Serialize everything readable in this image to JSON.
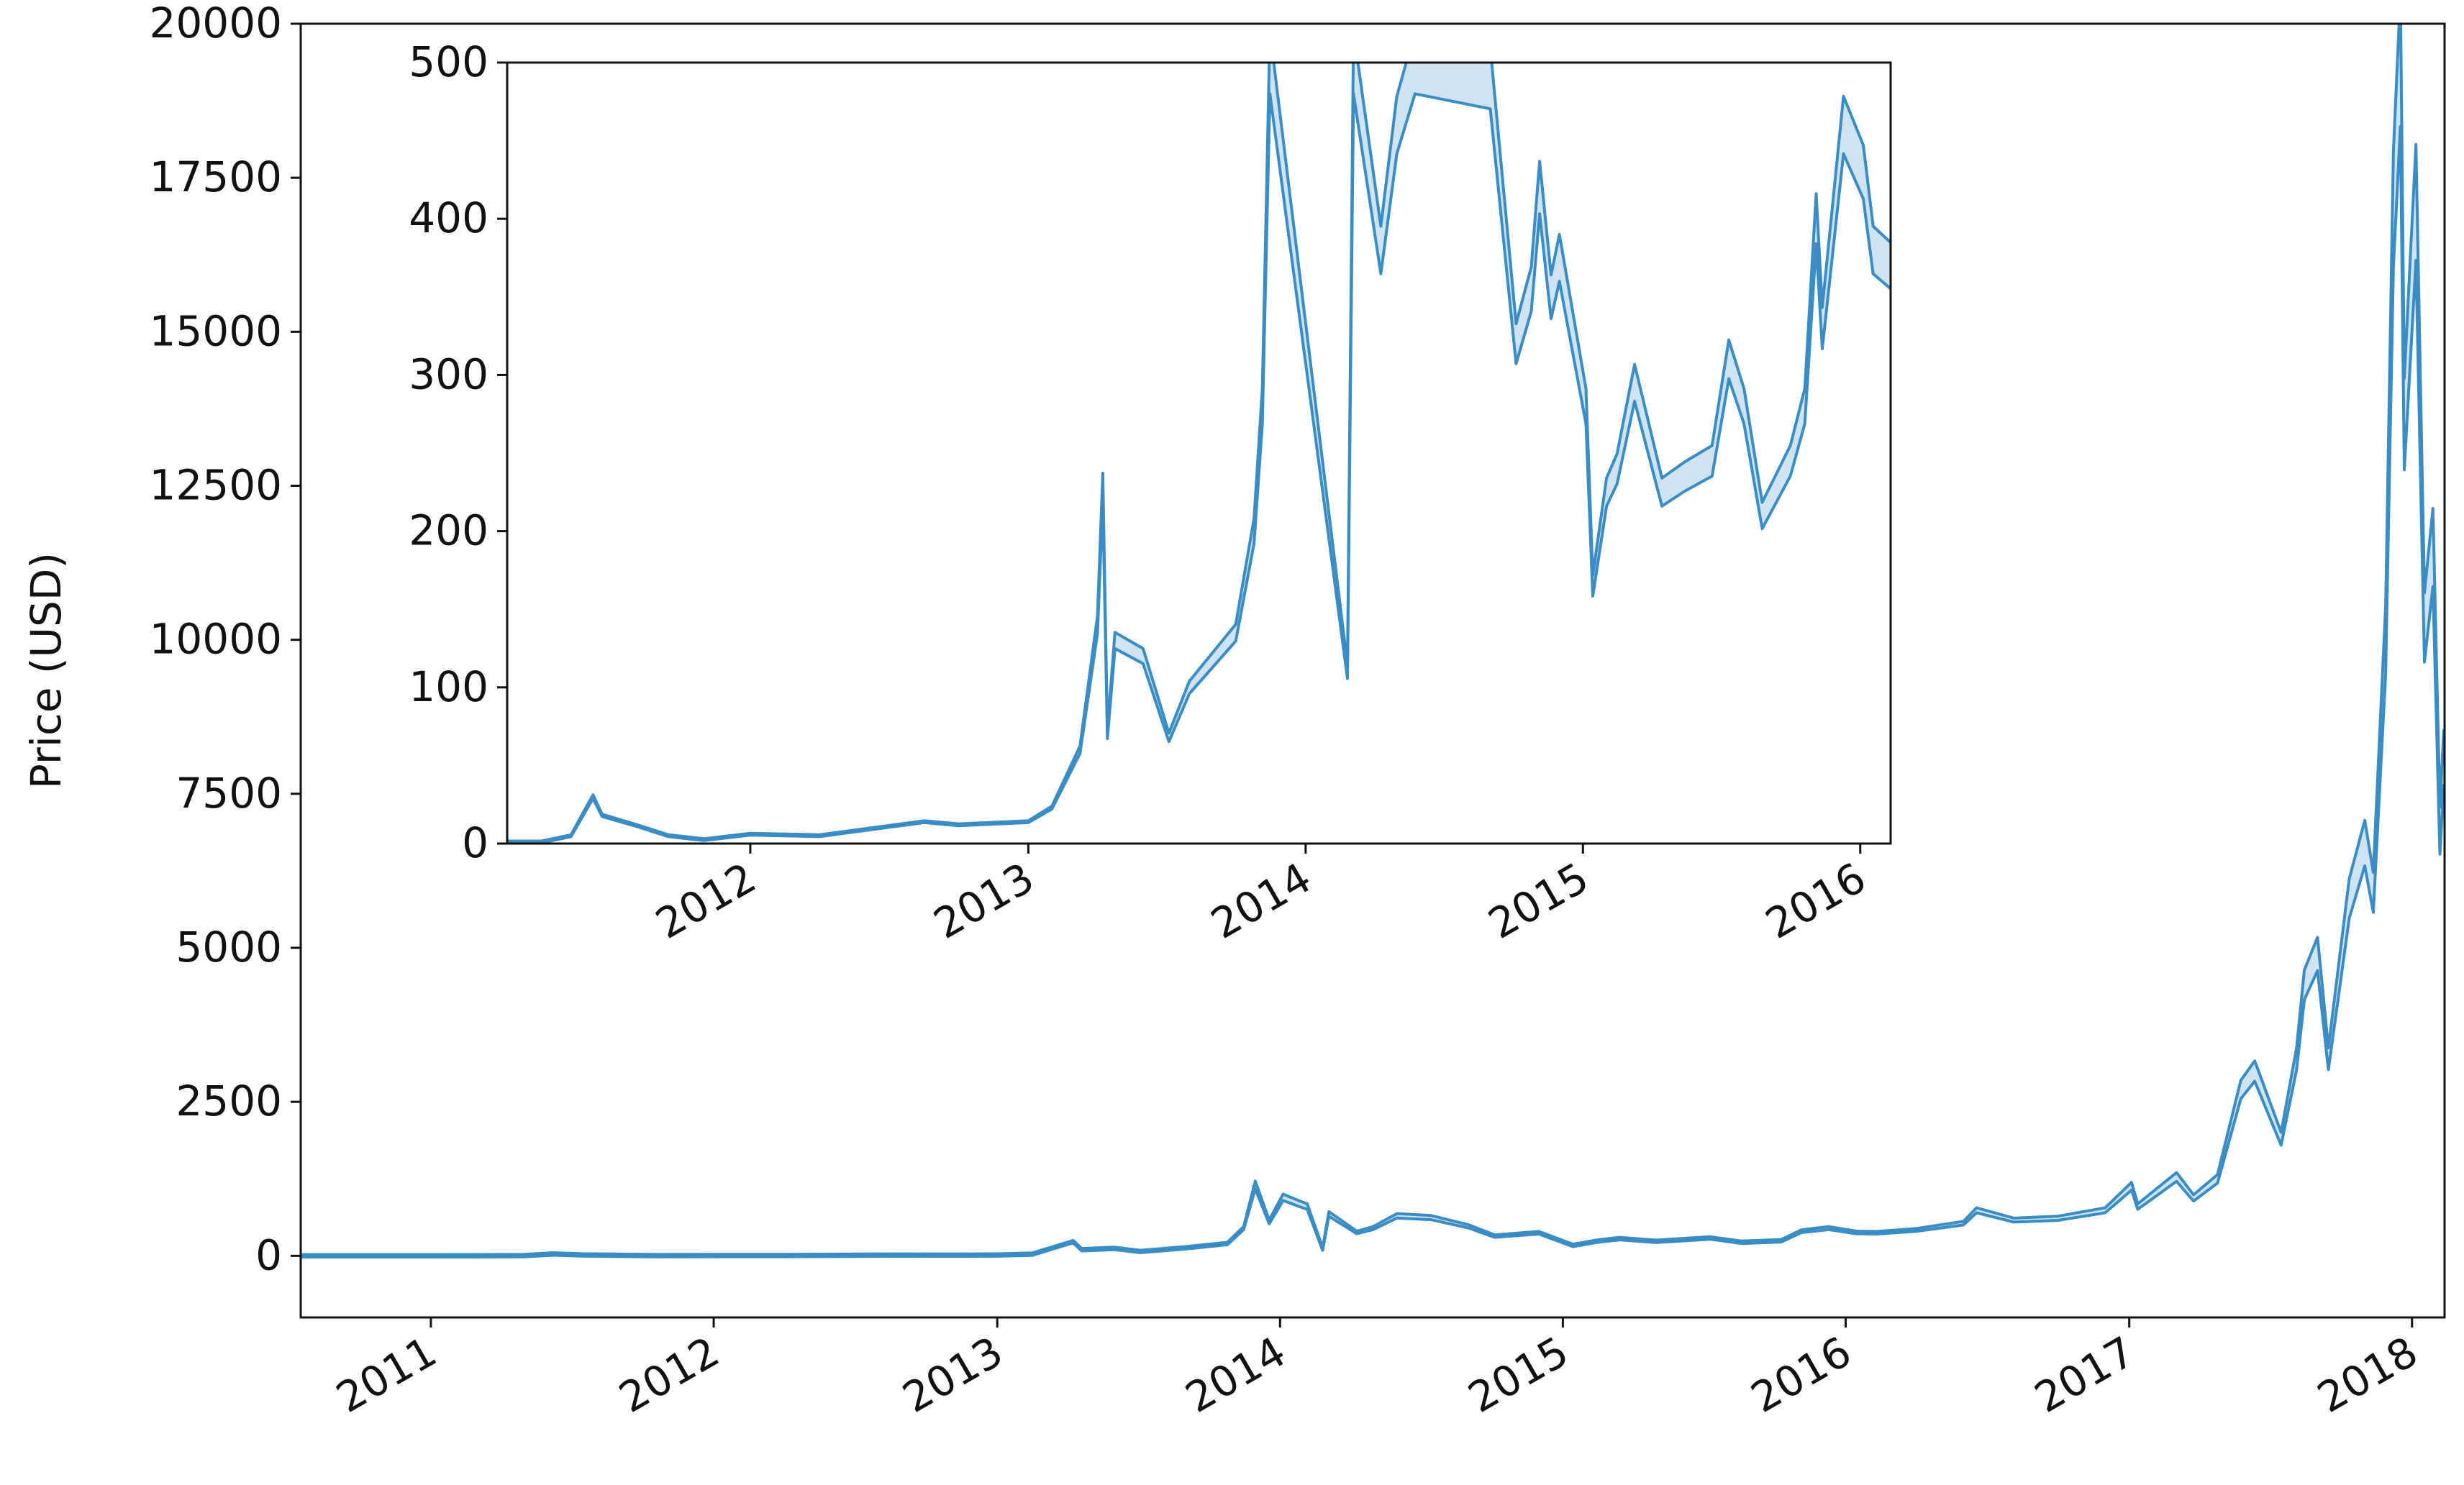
{
  "chart_data": [
    {
      "type": "line",
      "title": "",
      "xlabel": "",
      "ylabel": "Price (USD)",
      "xlim": [
        "2010-07-17",
        "2018-02-12"
      ],
      "ylim": [
        -1000,
        20000
      ],
      "xticks": [
        "2011",
        "2012",
        "2013",
        "2014",
        "2015",
        "2016",
        "2017",
        "2018"
      ],
      "yticks": [
        "0",
        "2500",
        "5000",
        "7500",
        "10000",
        "12500",
        "15000",
        "17500",
        "20000"
      ],
      "grid": false,
      "legend": "none",
      "series": [
        {
          "color": "#3a8cc4",
          "fill": "#cfe3f2",
          "points": [
            [
              "2010-07-17",
              0.05
            ],
            [
              "2010-10-01",
              0.1
            ],
            [
              "2011-01-01",
              0.3
            ],
            [
              "2011-03-01",
              0.9
            ],
            [
              "2011-05-01",
              3.5
            ],
            [
              "2011-06-08",
              30
            ],
            [
              "2011-07-15",
              14
            ],
            [
              "2011-10-20",
              2.5
            ],
            [
              "2012-01-01",
              5
            ],
            [
              "2012-04-01",
              5
            ],
            [
              "2012-08-15",
              12
            ],
            [
              "2012-11-01",
              11
            ],
            [
              "2013-01-01",
              13.5
            ],
            [
              "2013-02-15",
              27
            ],
            [
              "2013-04-09",
              230
            ],
            [
              "2013-04-20",
              100
            ],
            [
              "2013-06-01",
              120
            ],
            [
              "2013-07-05",
              70
            ],
            [
              "2013-09-01",
              130
            ],
            [
              "2013-10-25",
              200
            ],
            [
              "2013-11-15",
              450
            ],
            [
              "2013-11-30",
              1150
            ],
            [
              "2013-12-18",
              550
            ],
            [
              "2014-01-05",
              950
            ],
            [
              "2014-01-25",
              850
            ],
            [
              "2014-02-05",
              800
            ],
            [
              "2014-02-25",
              110
            ],
            [
              "2014-03-05",
              680
            ],
            [
              "2014-04-10",
              380
            ],
            [
              "2014-05-01",
              450
            ],
            [
              "2014-06-01",
              650
            ],
            [
              "2014-07-15",
              620
            ],
            [
              "2014-09-01",
              480
            ],
            [
              "2014-10-05",
              320
            ],
            [
              "2014-12-01",
              375
            ],
            [
              "2015-01-14",
              170
            ],
            [
              "2015-02-15",
              240
            ],
            [
              "2015-03-15",
              280
            ],
            [
              "2015-05-01",
              235
            ],
            [
              "2015-07-10",
              290
            ],
            [
              "2015-08-20",
              220
            ],
            [
              "2015-10-10",
              245
            ],
            [
              "2015-11-05",
              400
            ],
            [
              "2015-12-10",
              450
            ],
            [
              "2016-01-15",
              380
            ],
            [
              "2016-02-10",
              375
            ],
            [
              "2016-04-01",
              420
            ],
            [
              "2016-06-01",
              530
            ],
            [
              "2016-06-18",
              740
            ],
            [
              "2016-08-05",
              580
            ],
            [
              "2016-10-01",
              610
            ],
            [
              "2016-12-01",
              740
            ],
            [
              "2017-01-04",
              1130
            ],
            [
              "2017-01-12",
              800
            ],
            [
              "2017-03-03",
              1280
            ],
            [
              "2017-03-25",
              940
            ],
            [
              "2017-04-25",
              1250
            ],
            [
              "2017-05-25",
              2700
            ],
            [
              "2017-06-12",
              3000
            ],
            [
              "2017-07-16",
              1900
            ],
            [
              "2017-08-05",
              3200
            ],
            [
              "2017-08-15",
              4400
            ],
            [
              "2017-09-01",
              4900
            ],
            [
              "2017-09-15",
              3200
            ],
            [
              "2017-10-12",
              5800
            ],
            [
              "2017-11-01",
              6700
            ],
            [
              "2017-11-12",
              5900
            ],
            [
              "2017-11-28",
              10000
            ],
            [
              "2017-12-08",
              17000
            ],
            [
              "2017-12-17",
              19400
            ],
            [
              "2017-12-22",
              13500
            ],
            [
              "2018-01-06",
              17100
            ],
            [
              "2018-01-17",
              10200
            ],
            [
              "2018-01-28",
              11500
            ],
            [
              "2018-02-06",
              6900
            ],
            [
              "2018-02-11",
              8100
            ]
          ]
        }
      ]
    },
    {
      "type": "line",
      "title": "",
      "xlabel": "",
      "ylabel": "",
      "xlim": [
        "2011-02-15",
        "2016-02-10"
      ],
      "ylim": [
        0,
        500
      ],
      "xticks": [
        "2012",
        "2013",
        "2014",
        "2015",
        "2016"
      ],
      "yticks": [
        "0",
        "100",
        "200",
        "300",
        "400",
        "500"
      ],
      "grid": false,
      "legend": "none",
      "series": [
        {
          "color": "#3a8cc4",
          "fill": "#cfe3f2",
          "points": [
            [
              "2011-02-15",
              1
            ],
            [
              "2011-04-01",
              1
            ],
            [
              "2011-05-10",
              5
            ],
            [
              "2011-06-08",
              30
            ],
            [
              "2011-06-20",
              18
            ],
            [
              "2011-08-01",
              12
            ],
            [
              "2011-09-15",
              5
            ],
            [
              "2011-11-01",
              2.5
            ],
            [
              "2012-01-01",
              6
            ],
            [
              "2012-04-01",
              5
            ],
            [
              "2012-08-17",
              14
            ],
            [
              "2012-10-01",
              12
            ],
            [
              "2013-01-01",
              14
            ],
            [
              "2013-02-01",
              23
            ],
            [
              "2013-03-10",
              60
            ],
            [
              "2013-04-02",
              140
            ],
            [
              "2013-04-09",
              228
            ],
            [
              "2013-04-15",
              70
            ],
            [
              "2013-04-25",
              130
            ],
            [
              "2013-06-01",
              120
            ],
            [
              "2013-07-05",
              68
            ],
            [
              "2013-08-01",
              100
            ],
            [
              "2013-10-01",
              135
            ],
            [
              "2013-10-25",
              200
            ],
            [
              "2013-11-05",
              280
            ],
            [
              "2013-11-15",
              500
            ],
            [
              "2014-02-25",
              110
            ],
            [
              "2014-03-05",
              500
            ],
            [
              "2014-04-10",
              380
            ],
            [
              "2014-05-01",
              460
            ],
            [
              "2014-05-25",
              500
            ],
            [
              "2014-09-01",
              490
            ],
            [
              "2014-10-05",
              320
            ],
            [
              "2014-10-25",
              355
            ],
            [
              "2014-11-05",
              420
            ],
            [
              "2014-11-20",
              350
            ],
            [
              "2014-12-01",
              375
            ],
            [
              "2015-01-05",
              280
            ],
            [
              "2015-01-14",
              165
            ],
            [
              "2015-02-01",
              225
            ],
            [
              "2015-02-15",
              240
            ],
            [
              "2015-03-10",
              295
            ],
            [
              "2015-04-15",
              225
            ],
            [
              "2015-05-15",
              235
            ],
            [
              "2015-06-20",
              245
            ],
            [
              "2015-07-12",
              310
            ],
            [
              "2015-08-01",
              280
            ],
            [
              "2015-08-25",
              210
            ],
            [
              "2015-10-01",
              245
            ],
            [
              "2015-10-20",
              280
            ],
            [
              "2015-11-04",
              400
            ],
            [
              "2015-11-12",
              330
            ],
            [
              "2015-12-10",
              460
            ],
            [
              "2016-01-05",
              430
            ],
            [
              "2016-01-18",
              380
            ],
            [
              "2016-02-10",
              370
            ]
          ]
        }
      ]
    }
  ]
}
